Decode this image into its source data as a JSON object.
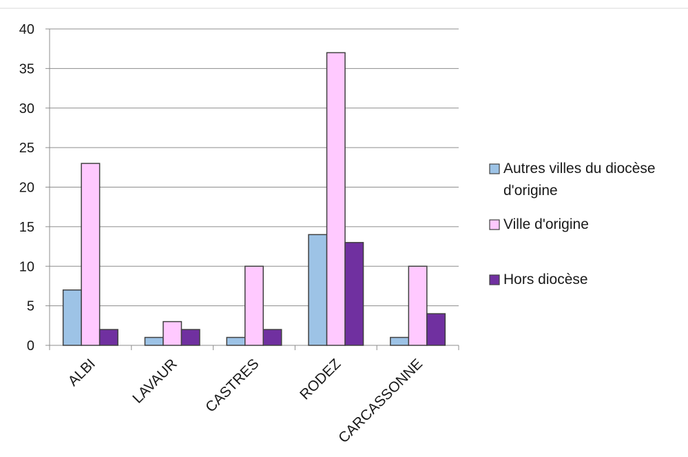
{
  "chart_data": {
    "type": "bar",
    "title": "",
    "xlabel": "",
    "ylabel": "",
    "ylim": [
      0,
      40
    ],
    "yticks": [
      0,
      5,
      10,
      15,
      20,
      25,
      30,
      35,
      40
    ],
    "grid": true,
    "legend_position": "right",
    "categories": [
      "ALBI",
      "LAVAUR",
      "CASTRES",
      "RODEZ",
      "CARCASSONNE"
    ],
    "series": [
      {
        "name": "Autres villes du diocèse d'origine",
        "name_lines": [
          "Autres villes du diocèse",
          "d'origine"
        ],
        "color": "#9dc3e6",
        "values": [
          7,
          1,
          1,
          14,
          1
        ]
      },
      {
        "name": "Ville d'origine",
        "name_lines": [
          "Ville d'origine"
        ],
        "color": "#ffc9ff",
        "values": [
          23,
          3,
          10,
          37,
          10
        ]
      },
      {
        "name": "Hors diocèse",
        "name_lines": [
          "Hors diocèse"
        ],
        "color": "#7030a0",
        "values": [
          2,
          2,
          2,
          13,
          4
        ]
      }
    ]
  }
}
